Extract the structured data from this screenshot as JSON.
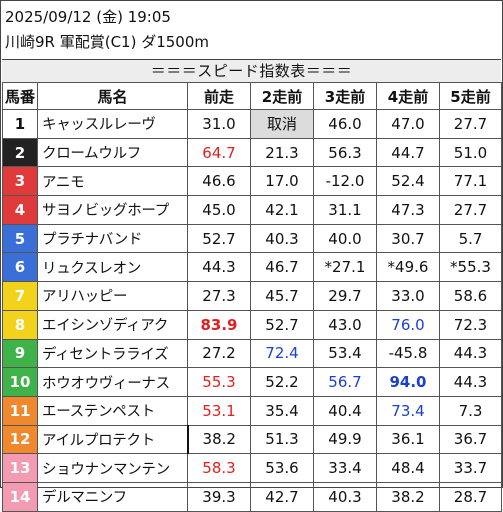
{
  "header": {
    "date_line": "2025/09/12 (金) 19:05",
    "race_line": "川崎9R 軍配賞(C1) ダ1500m"
  },
  "banner": "＝＝＝スピード指数表＝＝＝",
  "columns": [
    "馬番",
    "馬名",
    "前走",
    "2走前",
    "3走前",
    "4走前",
    "5走前"
  ],
  "rows": [
    {
      "num": "1",
      "name": "キャッスルレーヴ",
      "v": [
        "31.0",
        "取消",
        "46.0",
        "47.0",
        "27.7"
      ]
    },
    {
      "num": "2",
      "name": "クロームウルフ",
      "v": [
        "64.7",
        "21.3",
        "56.3",
        "44.7",
        "51.0"
      ]
    },
    {
      "num": "3",
      "name": "アニモ",
      "v": [
        "46.6",
        "17.0",
        "-12.0",
        "52.4",
        "77.1"
      ]
    },
    {
      "num": "4",
      "name": "サヨノビッグホープ",
      "v": [
        "45.0",
        "42.1",
        "31.1",
        "47.3",
        "27.7"
      ]
    },
    {
      "num": "5",
      "name": "プラチナバンド",
      "v": [
        "52.7",
        "40.3",
        "40.0",
        "30.7",
        "5.7"
      ]
    },
    {
      "num": "6",
      "name": "リュクスレオン",
      "v": [
        "44.3",
        "46.7",
        "*27.1",
        "*49.6",
        "*55.3"
      ]
    },
    {
      "num": "7",
      "name": "アリハッピー",
      "v": [
        "27.3",
        "45.7",
        "29.7",
        "33.0",
        "58.6"
      ]
    },
    {
      "num": "8",
      "name": "エイシンゾディアク",
      "v": [
        "83.9",
        "52.7",
        "43.0",
        "76.0",
        "72.3"
      ]
    },
    {
      "num": "9",
      "name": "ディセントラライズ",
      "v": [
        "27.2",
        "72.4",
        "53.4",
        "-45.8",
        "44.3"
      ]
    },
    {
      "num": "10",
      "name": "ホウオウヴィーナス",
      "v": [
        "55.3",
        "52.2",
        "56.7",
        "94.0",
        "44.3"
      ]
    },
    {
      "num": "11",
      "name": "エーステンペスト",
      "v": [
        "53.1",
        "35.4",
        "40.4",
        "73.4",
        "7.3"
      ]
    },
    {
      "num": "12",
      "name": "アイルプロテクト",
      "v": [
        "38.2",
        "51.3",
        "49.9",
        "36.1",
        "36.7"
      ]
    },
    {
      "num": "13",
      "name": "ショウナンマンテン",
      "v": [
        "58.3",
        "53.6",
        "33.4",
        "48.4",
        "33.7"
      ]
    },
    {
      "num": "14",
      "name": "デルマニンフ",
      "v": [
        "39.3",
        "42.7",
        "40.3",
        "38.2",
        "28.7"
      ]
    }
  ],
  "colors": {
    "red": "#e02020",
    "blue": "#1a3fd1",
    "cancel_bg": "#dcdcdc",
    "frame": [
      "#ffffff",
      "#222222",
      "#e03a3a",
      "#e03a3a",
      "#3a6fd8",
      "#3a6fd8",
      "#f2d21b",
      "#f2d21b",
      "#3fb34a",
      "#3fb34a",
      "#f0892e",
      "#f0892e",
      "#f29bb2",
      "#f29bb2"
    ]
  }
}
